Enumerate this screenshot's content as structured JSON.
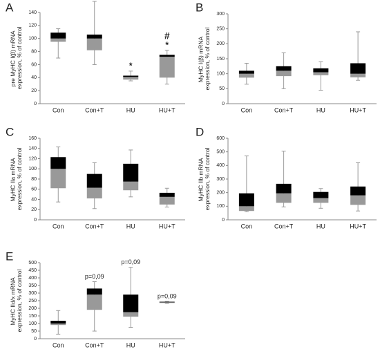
{
  "chart_data": [
    {
      "type": "box",
      "label": "A",
      "ylabel": "pre MyHC I(β) mRNA expression, % of control",
      "categories": [
        "Con",
        "Con+T",
        "HU",
        "HU+T"
      ],
      "ylim": [
        0,
        140
      ],
      "yticks": [
        0,
        20,
        40,
        60,
        80,
        100,
        120,
        140
      ],
      "lower_color": "#999999",
      "upper_color": "#000000",
      "boxes": [
        {
          "low": 70,
          "q1": 95,
          "median": 100,
          "q3": 109,
          "high": 115
        },
        {
          "low": 60,
          "q1": 82,
          "median": 100,
          "q3": 106,
          "high": 157
        },
        {
          "low": 35,
          "q1": 37,
          "median": 41,
          "q3": 43,
          "high": 50,
          "notes": [
            "*"
          ]
        },
        {
          "low": 30,
          "q1": 40,
          "median": 72,
          "q3": 75,
          "high": 82,
          "notes": [
            "*",
            "#"
          ]
        }
      ]
    },
    {
      "type": "box",
      "label": "B",
      "ylabel": "MyHC I(β) mRNA expression, % of control",
      "categories": [
        "Con",
        "Con+T",
        "HU",
        "HU+T"
      ],
      "ylim": [
        0,
        300
      ],
      "yticks": [
        0,
        50,
        100,
        150,
        200,
        250,
        300
      ],
      "lower_color": "#999999",
      "upper_color": "#000000",
      "boxes": [
        {
          "low": 65,
          "q1": 87,
          "median": 100,
          "q3": 110,
          "high": 135
        },
        {
          "low": 50,
          "q1": 92,
          "median": 110,
          "q3": 125,
          "high": 170
        },
        {
          "low": 45,
          "q1": 95,
          "median": 105,
          "q3": 118,
          "high": 140
        },
        {
          "low": 78,
          "q1": 88,
          "median": 100,
          "q3": 135,
          "high": 240
        }
      ]
    },
    {
      "type": "box",
      "label": "C",
      "ylabel": "MyHC IIa mRNA expression, % of control",
      "categories": [
        "Con",
        "Con+T",
        "HU",
        "HU+T"
      ],
      "ylim": [
        0,
        160
      ],
      "yticks": [
        0,
        20,
        40,
        60,
        80,
        100,
        120,
        140,
        160
      ],
      "lower_color": "#999999",
      "upper_color": "#000000",
      "boxes": [
        {
          "low": 35,
          "q1": 62,
          "median": 100,
          "q3": 123,
          "high": 143
        },
        {
          "low": 22,
          "q1": 42,
          "median": 63,
          "q3": 90,
          "high": 112
        },
        {
          "low": 45,
          "q1": 58,
          "median": 75,
          "q3": 110,
          "high": 137
        },
        {
          "low": 25,
          "q1": 30,
          "median": 45,
          "q3": 53,
          "high": 62
        }
      ]
    },
    {
      "type": "box",
      "label": "D",
      "ylabel": "MyHC IIb mRNA expression, % of control",
      "categories": [
        "Con",
        "Con+T",
        "HU",
        "HU+T"
      ],
      "ylim": [
        0,
        600
      ],
      "yticks": [
        0,
        100,
        200,
        300,
        400,
        500,
        600
      ],
      "lower_color": "#999999",
      "upper_color": "#000000",
      "boxes": [
        {
          "low": 60,
          "q1": 65,
          "median": 100,
          "q3": 195,
          "high": 470
        },
        {
          "low": 95,
          "q1": 125,
          "median": 195,
          "q3": 265,
          "high": 505
        },
        {
          "low": 85,
          "q1": 125,
          "median": 160,
          "q3": 205,
          "high": 230
        },
        {
          "low": 65,
          "q1": 110,
          "median": 180,
          "q3": 245,
          "high": 420
        }
      ]
    },
    {
      "type": "box",
      "label": "E",
      "ylabel": "MyHC IId/x mRNA expression, % of control",
      "categories": [
        "Con",
        "Con+T",
        "HU",
        "HU+T"
      ],
      "ylim": [
        0,
        500
      ],
      "yticks": [
        0,
        50,
        100,
        150,
        200,
        250,
        300,
        350,
        400,
        450,
        500
      ],
      "lower_color": "#999999",
      "upper_color": "#000000",
      "boxes": [
        {
          "low": 30,
          "q1": 90,
          "median": 100,
          "q3": 118,
          "high": 185
        },
        {
          "low": 50,
          "q1": 190,
          "median": 290,
          "q3": 330,
          "high": 375,
          "notes": [
            "p=0,09"
          ]
        },
        {
          "low": 75,
          "q1": 145,
          "median": 175,
          "q3": 290,
          "high": 470,
          "notes": [
            "p=0,09"
          ]
        },
        {
          "low": 232,
          "q1": 235,
          "median": 240,
          "q3": 243,
          "high": 245,
          "notes": [
            "p=0,09"
          ]
        }
      ]
    }
  ]
}
